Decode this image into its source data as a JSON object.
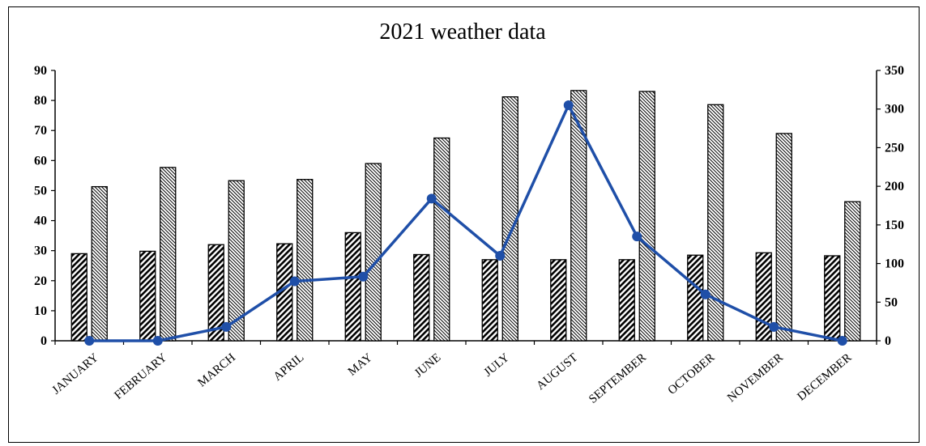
{
  "chart_data": {
    "type": "bar",
    "title": "2021 weather data",
    "categories": [
      "JANUARY",
      "FEBRUARY",
      "MARCH",
      "APRIL",
      "MAY",
      "JUNE",
      "JULY",
      "AUGUST",
      "SEPTEMBER",
      "OCTOBER",
      "NOVEMBER",
      "DECEMBER"
    ],
    "ylim": [
      0,
      90
    ],
    "y_ticks": [
      0,
      10,
      20,
      30,
      40,
      50,
      60,
      70,
      80,
      90
    ],
    "y2lim": [
      0,
      350
    ],
    "y2_ticks": [
      0,
      50,
      100,
      150,
      200,
      250,
      300,
      350
    ],
    "grid": false,
    "legend": "none",
    "series": [
      {
        "type": "bar",
        "axis": "left",
        "pattern": "diagonal-coarse",
        "values": [
          29,
          29.8,
          32,
          32.3,
          36,
          28.7,
          27,
          27,
          27,
          28.5,
          29.3,
          28.3
        ]
      },
      {
        "type": "bar",
        "axis": "left",
        "pattern": "diagonal-fine",
        "values": [
          51.3,
          57.7,
          53.3,
          53.7,
          59,
          67.5,
          81.2,
          83.3,
          83,
          78.6,
          69,
          46.3
        ]
      },
      {
        "type": "line",
        "axis": "right",
        "color": "#1f4fa8",
        "values": [
          0,
          0,
          18,
          77,
          83,
          184,
          110,
          305,
          135,
          60,
          18,
          0
        ]
      }
    ]
  }
}
